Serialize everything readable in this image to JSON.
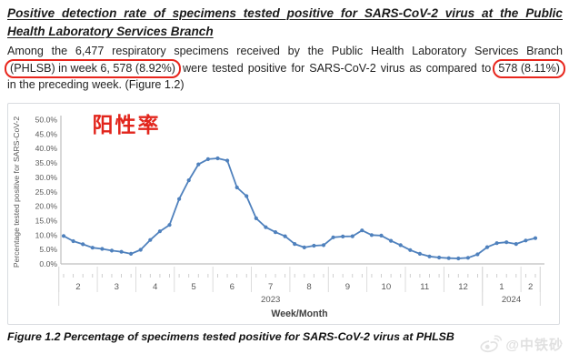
{
  "title": {
    "line1": "Positive detection rate of specimens tested positive for SARS-CoV-2 virus at the Public",
    "line2": "Health Laboratory Services Branch"
  },
  "paragraph": {
    "line1": "Among the 6,477 respiratory specimens received by the Public Health Laboratory Services Branch",
    "highlight_current": "(PHLSB) in week 6, 578 (8.92%)",
    "line2_middle": "were tested positive for SARS-CoV-2 virus as compared to",
    "highlight_previous": "578 (8.11%)",
    "line3": "in the preceding week. (Figure 1.2)",
    "highlight_color": "#e8261d"
  },
  "chart_data": {
    "type": "line",
    "annotation": {
      "text": "阳性率",
      "color": "#e2251c"
    },
    "ylabel": "Percentage tested positive for SARS-CoV-2",
    "xlabel": "Week/Month",
    "ylim": [
      0,
      50
    ],
    "y_tick_labels": [
      "0.0%",
      "5.0%",
      "10.0%",
      "15.0%",
      "20.0%",
      "25.0%",
      "30.0%",
      "35.0%",
      "40.0%",
      "45.0%",
      "50.0%"
    ],
    "grid": false,
    "legend": "none",
    "line_color": "#4f81bd",
    "axis_color": "#bfbfbf",
    "tick_text_color": "#595959",
    "x_axis": {
      "months": [
        {
          "label": "2",
          "weeks": 4
        },
        {
          "label": "3",
          "weeks": 4
        },
        {
          "label": "4",
          "weeks": 4
        },
        {
          "label": "5",
          "weeks": 4
        },
        {
          "label": "6",
          "weeks": 4
        },
        {
          "label": "7",
          "weeks": 4
        },
        {
          "label": "8",
          "weeks": 4
        },
        {
          "label": "9",
          "weeks": 4
        },
        {
          "label": "10",
          "weeks": 4
        },
        {
          "label": "11",
          "weeks": 4
        },
        {
          "label": "12",
          "weeks": 4
        },
        {
          "label": "1",
          "weeks": 4
        },
        {
          "label": "2",
          "weeks": 2
        }
      ],
      "year_groups": [
        {
          "label": "2023",
          "months": 11
        },
        {
          "label": "2024",
          "months": 2
        }
      ]
    },
    "series": [
      {
        "name": "Percentage tested positive for SARS-CoV-2",
        "weekly_values_percent": [
          9.7,
          7.9,
          6.8,
          5.6,
          5.2,
          4.6,
          4.2,
          3.5,
          4.9,
          8.3,
          11.3,
          13.5,
          22.5,
          29.0,
          34.5,
          36.3,
          36.6,
          35.8,
          26.5,
          23.5,
          15.8,
          12.7,
          11.0,
          9.6,
          6.9,
          5.7,
          6.3,
          6.5,
          9.2,
          9.5,
          9.6,
          11.6,
          10.0,
          9.8,
          8.0,
          6.5,
          4.8,
          3.5,
          2.6,
          2.2,
          2.0,
          1.9,
          2.1,
          3.3,
          5.8,
          7.2,
          7.5,
          6.9,
          8.11,
          8.92
        ]
      }
    ]
  },
  "caption": "Figure 1.2 Percentage of specimens tested positive for SARS-CoV-2 virus at PHLSB",
  "watermark": {
    "handle": "@中铁砂"
  }
}
